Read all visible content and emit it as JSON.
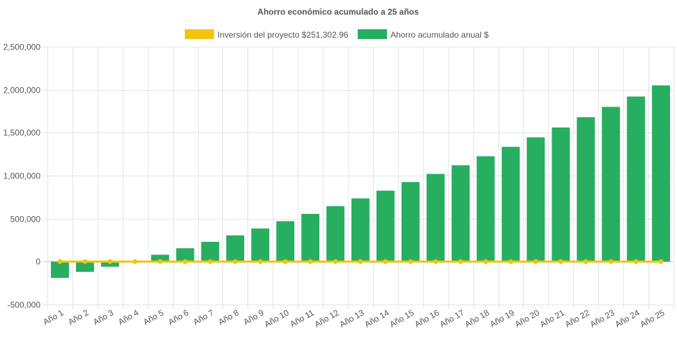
{
  "chart_data": {
    "type": "bar",
    "title": "Ahorro económico acumulado a 25 años",
    "categories": [
      "Año 1",
      "Año 2",
      "Año 3",
      "Año 4",
      "Año 5",
      "Año 6",
      "Año 7",
      "Año 8",
      "Año 9",
      "Año 10",
      "Año 11",
      "Año 12",
      "Año 13",
      "Año 14",
      "Año 15",
      "Año 16",
      "Año 17",
      "Año 18",
      "Año 19",
      "Año 20",
      "Año 21",
      "Año 22",
      "Año 23",
      "Año 24",
      "Año 25"
    ],
    "series": [
      {
        "name": "Inversión del proyecto $251,302.96",
        "kind": "line",
        "color": "#f1c40f",
        "values": [
          0,
          0,
          0,
          0,
          0,
          0,
          0,
          0,
          0,
          0,
          0,
          0,
          0,
          0,
          0,
          0,
          0,
          0,
          0,
          0,
          0,
          0,
          0,
          0,
          0
        ]
      },
      {
        "name": "Ahorro acumulado anual $",
        "kind": "bar",
        "color": "#27ae60",
        "values": [
          -190000,
          -120000,
          -60000,
          10000,
          80000,
          155000,
          230000,
          305000,
          385000,
          470000,
          555000,
          645000,
          735000,
          825000,
          925000,
          1020000,
          1120000,
          1225000,
          1335000,
          1445000,
          1560000,
          1680000,
          1800000,
          1920000,
          2050000
        ]
      }
    ],
    "ylim": [
      -500000,
      2500000
    ],
    "yticks": [
      2500000,
      2000000,
      1500000,
      1000000,
      500000,
      0,
      -500000
    ],
    "ytick_labels": [
      "2,500,000",
      "2,000,000",
      "1,500,000",
      "1,000,000",
      "500,000",
      "0",
      "-500,000"
    ],
    "xlabel": "",
    "ylabel": "",
    "grid": true,
    "legend_position": "top"
  }
}
